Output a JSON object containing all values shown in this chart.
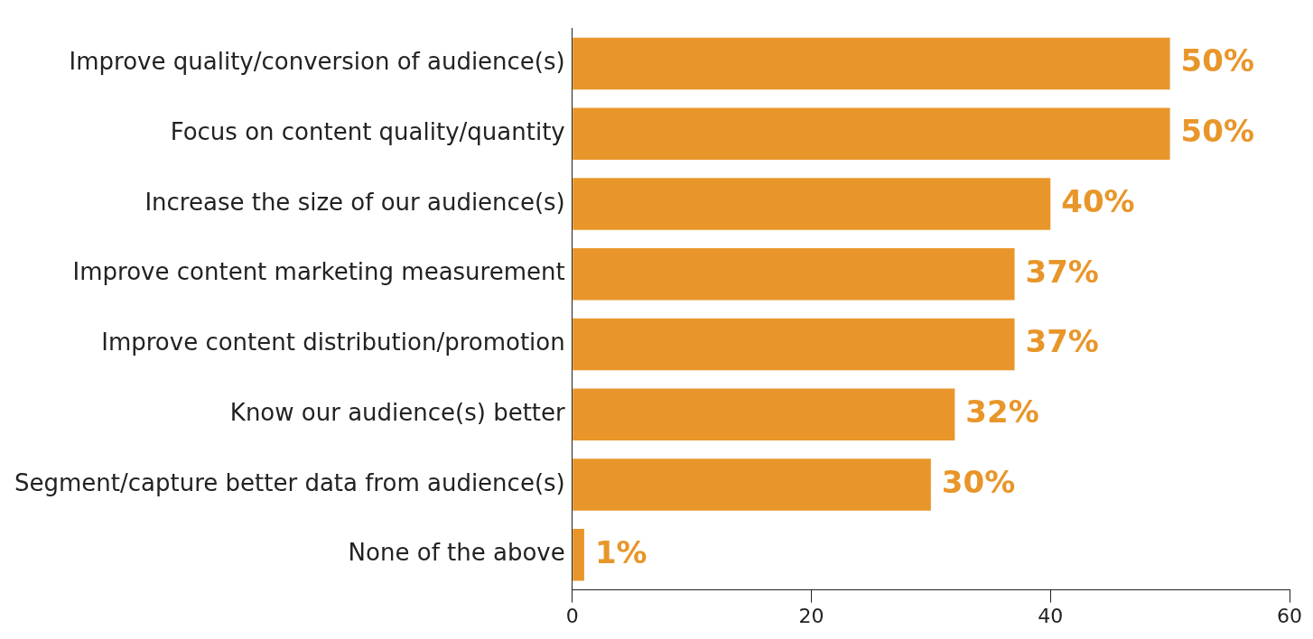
{
  "chart_data": {
    "type": "bar",
    "orientation": "horizontal",
    "categories": [
      "Improve quality/conversion of audience(s)",
      "Focus on content quality/quantity",
      "Increase the size of our audience(s)",
      "Improve content marketing measurement",
      "Improve content distribution/promotion",
      "Know our audience(s) better",
      "Segment/capture better data from audience(s)",
      "None of the above"
    ],
    "values": [
      50,
      50,
      40,
      37,
      37,
      32,
      30,
      1
    ],
    "value_labels": [
      "50%",
      "50%",
      "40%",
      "37%",
      "37%",
      "32%",
      "30%",
      "1%"
    ],
    "color": "#e8962a",
    "xlim": [
      0,
      60
    ],
    "xticks": [
      0,
      20,
      40,
      60
    ],
    "grid": false,
    "legend": false
  }
}
